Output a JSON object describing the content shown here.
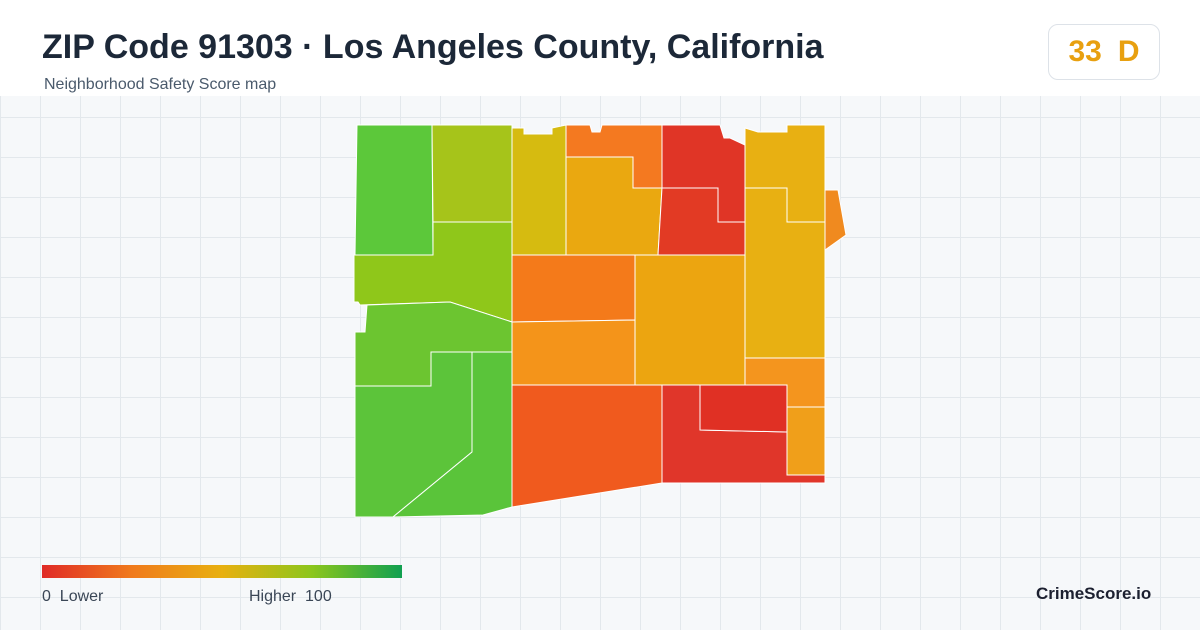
{
  "header": {
    "title": "ZIP Code 91303 · Los Angeles County, California",
    "subtitle": "Neighborhood Safety Score map"
  },
  "score": {
    "value": 33,
    "grade": "D"
  },
  "legend": {
    "min": 0,
    "min_label": "Lower",
    "max_label": "Higher",
    "max": 100
  },
  "brand": "CrimeScore.io"
}
